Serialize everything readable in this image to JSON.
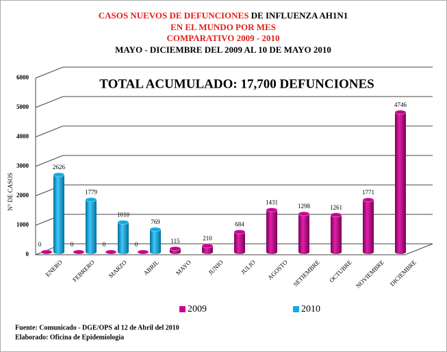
{
  "chart_data": {
    "type": "bar",
    "title": [
      "CASOS NUEVOS DE DEFUNCIONES",
      "DE INFLUENZA AH1N1",
      "EN EL MUNDO POR MES",
      "COMPARATIVO 2009 - 2010"
    ],
    "subtitle": "MAYO - DICIEMBRE DEL 2009 AL 10 DE MAYO 2010",
    "annotation": "TOTAL ACUMULADO: 17,700 DEFUNCIONES",
    "y_label": "N° DE CASOS",
    "categories": [
      "ENERO",
      "FEBRERO",
      "MARZO",
      "ABRIL",
      "MAYO",
      "JUNIO",
      "JULIO",
      "AGOSTO",
      "SETIEMBRE",
      "OCTUBRE",
      "NOVIEMBRE",
      "DICIEMBRE"
    ],
    "series": [
      {
        "name": "2009",
        "color": "#c8008f",
        "values": [
          0,
          0,
          0,
          0,
          115,
          210,
          684,
          1431,
          1298,
          1261,
          1771,
          4746
        ]
      },
      {
        "name": "2010",
        "color": "#16a9e1",
        "values": [
          2626,
          1779,
          1010,
          769,
          null,
          null,
          null,
          null,
          null,
          null,
          null,
          null
        ]
      }
    ],
    "ylim": [
      0,
      6000
    ],
    "yticks": [
      0,
      1000,
      2000,
      3000,
      4000,
      5000,
      6000
    ],
    "grid": true,
    "footer": [
      "Fuente: Comunicado - DGE/OPS  al 12 de Abril del 2010",
      "Elaborado: Oficina de Epidemiologia"
    ]
  }
}
